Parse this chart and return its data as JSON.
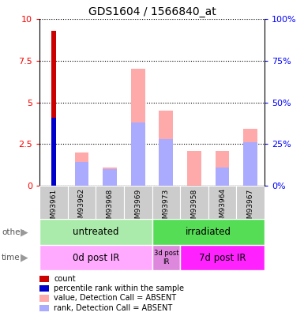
{
  "title": "GDS1604 / 1566840_at",
  "samples": [
    "GSM93961",
    "GSM93962",
    "GSM93968",
    "GSM93969",
    "GSM93973",
    "GSM93958",
    "GSM93964",
    "GSM93967"
  ],
  "count_values": [
    9.3,
    0,
    0,
    0,
    0,
    0,
    0,
    0
  ],
  "percentile_values": [
    4.1,
    0,
    0,
    0,
    0,
    0,
    0,
    0
  ],
  "absent_value": [
    0,
    2.0,
    1.1,
    7.0,
    4.5,
    2.1,
    2.1,
    3.4
  ],
  "absent_rank": [
    0,
    1.4,
    1.0,
    3.8,
    2.8,
    0,
    1.1,
    2.6
  ],
  "ylim": [
    0,
    10
  ],
  "y2lim": [
    0,
    100
  ],
  "yticks": [
    0,
    2.5,
    5,
    7.5,
    10
  ],
  "y2ticks": [
    0,
    25,
    50,
    75,
    100
  ],
  "color_count": "#cc0000",
  "color_percentile": "#0000cc",
  "color_absent_value": "#ffaaaa",
  "color_absent_rank": "#aaaaff",
  "color_untreated": "#aaeaaa",
  "color_irradiated": "#55dd55",
  "color_0d": "#ffaaff",
  "color_3d": "#dd88dd",
  "color_7d": "#ff22ff",
  "legend_items": [
    {
      "label": "count",
      "color": "#cc0000"
    },
    {
      "label": "percentile rank within the sample",
      "color": "#0000cc"
    },
    {
      "label": "value, Detection Call = ABSENT",
      "color": "#ffaaaa"
    },
    {
      "label": "rank, Detection Call = ABSENT",
      "color": "#aaaaff"
    }
  ],
  "bar_width": 0.5,
  "title_fontsize": 10,
  "label_fontsize": 6.5
}
